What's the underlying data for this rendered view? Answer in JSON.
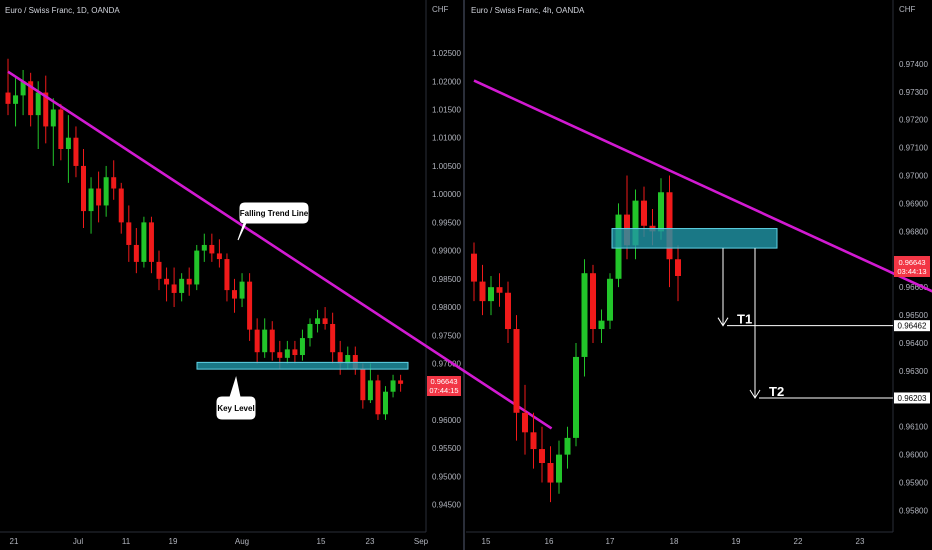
{
  "chart_data": [
    {
      "type": "candlestick",
      "title": "Euro / Swiss Franc, 1D, OANDA",
      "currency": "CHF",
      "ylim": [
        0.9405,
        1.0305
      ],
      "y_ticks": [
        "1.02500",
        "1.02000",
        "1.01500",
        "1.01000",
        "1.00500",
        "1.00000",
        "0.99500",
        "0.99000",
        "0.98500",
        "0.98000",
        "0.97500",
        "0.97000",
        "0.96500",
        "0.96000",
        "0.95500",
        "0.95000",
        "0.94500"
      ],
      "x_ticks": [
        "21",
        "Jul",
        "11",
        "19",
        "Aug",
        "15",
        "23",
        "Sep"
      ],
      "price": {
        "value": "0.96643",
        "countdown": "07:44:15"
      },
      "trendline": {
        "label": "Falling Trend Line",
        "from": [
          0,
          1.0217
        ],
        "to": [
          72,
          0.9585
        ]
      },
      "key_level": {
        "label": "Key Level",
        "low": 0.969,
        "high": 0.9702
      },
      "candles": [
        {
          "o": 1.018,
          "h": 1.024,
          "l": 1.014,
          "c": 1.016
        },
        {
          "o": 1.016,
          "h": 1.021,
          "l": 1.012,
          "c": 1.0175
        },
        {
          "o": 1.0175,
          "h": 1.022,
          "l": 1.014,
          "c": 1.02
        },
        {
          "o": 1.02,
          "h": 1.0215,
          "l": 1.012,
          "c": 1.014
        },
        {
          "o": 1.014,
          "h": 1.02,
          "l": 1.008,
          "c": 1.018
        },
        {
          "o": 1.018,
          "h": 1.021,
          "l": 1.009,
          "c": 1.012
        },
        {
          "o": 1.012,
          "h": 1.017,
          "l": 1.005,
          "c": 1.015
        },
        {
          "o": 1.015,
          "h": 1.016,
          "l": 1.006,
          "c": 1.008
        },
        {
          "o": 1.008,
          "h": 1.014,
          "l": 1.002,
          "c": 1.01
        },
        {
          "o": 1.01,
          "h": 1.012,
          "l": 1.003,
          "c": 1.005
        },
        {
          "o": 1.005,
          "h": 1.008,
          "l": 0.994,
          "c": 0.997
        },
        {
          "o": 0.997,
          "h": 1.003,
          "l": 0.993,
          "c": 1.001
        },
        {
          "o": 1.001,
          "h": 1.004,
          "l": 0.995,
          "c": 0.998
        },
        {
          "o": 0.998,
          "h": 1.005,
          "l": 0.996,
          "c": 1.003
        },
        {
          "o": 1.003,
          "h": 1.006,
          "l": 0.999,
          "c": 1.001
        },
        {
          "o": 1.001,
          "h": 1.002,
          "l": 0.993,
          "c": 0.995
        },
        {
          "o": 0.995,
          "h": 0.998,
          "l": 0.988,
          "c": 0.991
        },
        {
          "o": 0.991,
          "h": 0.994,
          "l": 0.986,
          "c": 0.988
        },
        {
          "o": 0.988,
          "h": 0.996,
          "l": 0.987,
          "c": 0.995
        },
        {
          "o": 0.995,
          "h": 0.996,
          "l": 0.986,
          "c": 0.988
        },
        {
          "o": 0.988,
          "h": 0.99,
          "l": 0.983,
          "c": 0.985
        },
        {
          "o": 0.985,
          "h": 0.987,
          "l": 0.981,
          "c": 0.984
        },
        {
          "o": 0.984,
          "h": 0.987,
          "l": 0.98,
          "c": 0.9825
        },
        {
          "o": 0.9825,
          "h": 0.986,
          "l": 0.981,
          "c": 0.985
        },
        {
          "o": 0.985,
          "h": 0.987,
          "l": 0.982,
          "c": 0.984
        },
        {
          "o": 0.984,
          "h": 0.991,
          "l": 0.983,
          "c": 0.99
        },
        {
          "o": 0.99,
          "h": 0.993,
          "l": 0.988,
          "c": 0.991
        },
        {
          "o": 0.991,
          "h": 0.993,
          "l": 0.988,
          "c": 0.9895
        },
        {
          "o": 0.9895,
          "h": 0.992,
          "l": 0.987,
          "c": 0.9885
        },
        {
          "o": 0.9885,
          "h": 0.9895,
          "l": 0.981,
          "c": 0.983
        },
        {
          "o": 0.983,
          "h": 0.985,
          "l": 0.979,
          "c": 0.9815
        },
        {
          "o": 0.9815,
          "h": 0.986,
          "l": 0.98,
          "c": 0.9845
        },
        {
          "o": 0.9845,
          "h": 0.986,
          "l": 0.974,
          "c": 0.976
        },
        {
          "o": 0.976,
          "h": 0.978,
          "l": 0.97,
          "c": 0.972
        },
        {
          "o": 0.972,
          "h": 0.978,
          "l": 0.971,
          "c": 0.976
        },
        {
          "o": 0.976,
          "h": 0.9775,
          "l": 0.9705,
          "c": 0.972
        },
        {
          "o": 0.972,
          "h": 0.974,
          "l": 0.969,
          "c": 0.971
        },
        {
          "o": 0.971,
          "h": 0.974,
          "l": 0.97,
          "c": 0.9725
        },
        {
          "o": 0.9725,
          "h": 0.974,
          "l": 0.97,
          "c": 0.9715
        },
        {
          "o": 0.9715,
          "h": 0.976,
          "l": 0.9705,
          "c": 0.9745
        },
        {
          "o": 0.9745,
          "h": 0.978,
          "l": 0.973,
          "c": 0.977
        },
        {
          "o": 0.977,
          "h": 0.9795,
          "l": 0.9755,
          "c": 0.978
        },
        {
          "o": 0.978,
          "h": 0.98,
          "l": 0.976,
          "c": 0.977
        },
        {
          "o": 0.977,
          "h": 0.979,
          "l": 0.97,
          "c": 0.972
        },
        {
          "o": 0.972,
          "h": 0.974,
          "l": 0.968,
          "c": 0.97
        },
        {
          "o": 0.97,
          "h": 0.973,
          "l": 0.969,
          "c": 0.9715
        },
        {
          "o": 0.9715,
          "h": 0.973,
          "l": 0.968,
          "c": 0.969
        },
        {
          "o": 0.969,
          "h": 0.97,
          "l": 0.962,
          "c": 0.9635
        },
        {
          "o": 0.9635,
          "h": 0.97,
          "l": 0.963,
          "c": 0.967
        },
        {
          "o": 0.967,
          "h": 0.968,
          "l": 0.96,
          "c": 0.961
        },
        {
          "o": 0.961,
          "h": 0.966,
          "l": 0.96,
          "c": 0.965
        },
        {
          "o": 0.965,
          "h": 0.968,
          "l": 0.964,
          "c": 0.967
        },
        {
          "o": 0.967,
          "h": 0.968,
          "l": 0.965,
          "c": 0.9664
        }
      ]
    },
    {
      "type": "candlestick",
      "title": "Euro / Swiss Franc, 4h, OANDA",
      "currency": "CHF",
      "ylim": [
        0.9573,
        0.9755
      ],
      "y_ticks": [
        "0.97400",
        "0.97300",
        "0.97200",
        "0.97100",
        "0.97000",
        "0.96900",
        "0.96800",
        "0.96700",
        "0.96600",
        "0.96500",
        "0.96400",
        "0.96300",
        "0.96200",
        "0.96100",
        "0.96000",
        "0.95900",
        "0.95800"
      ],
      "x_ticks": [
        "15",
        "16",
        "17",
        "18",
        "19",
        "22",
        "23"
      ],
      "price": {
        "value": "0.96643",
        "countdown": "03:44:13"
      },
      "trendline": {
        "from": [
          0,
          0.9734
        ],
        "to": [
          60,
          0.965
        ]
      },
      "key_level": {
        "low": 0.9674,
        "high": 0.9681
      },
      "targets": [
        {
          "label": "T1",
          "value": "0.96462",
          "level": 0.96462
        },
        {
          "label": "T2",
          "value": "0.96203",
          "level": 0.96203
        }
      ],
      "candles": [
        {
          "o": 0.9672,
          "h": 0.9676,
          "l": 0.9655,
          "c": 0.9662
        },
        {
          "o": 0.9662,
          "h": 0.9668,
          "l": 0.965,
          "c": 0.9655
        },
        {
          "o": 0.9655,
          "h": 0.9664,
          "l": 0.965,
          "c": 0.966
        },
        {
          "o": 0.966,
          "h": 0.9665,
          "l": 0.9653,
          "c": 0.9658
        },
        {
          "o": 0.9658,
          "h": 0.9662,
          "l": 0.964,
          "c": 0.9645
        },
        {
          "o": 0.9645,
          "h": 0.965,
          "l": 0.9605,
          "c": 0.9615
        },
        {
          "o": 0.9615,
          "h": 0.9625,
          "l": 0.96,
          "c": 0.9608
        },
        {
          "o": 0.9608,
          "h": 0.9615,
          "l": 0.9595,
          "c": 0.9602
        },
        {
          "o": 0.9602,
          "h": 0.961,
          "l": 0.959,
          "c": 0.9597
        },
        {
          "o": 0.9597,
          "h": 0.9603,
          "l": 0.9583,
          "c": 0.959
        },
        {
          "o": 0.959,
          "h": 0.9605,
          "l": 0.9586,
          "c": 0.96
        },
        {
          "o": 0.96,
          "h": 0.961,
          "l": 0.9595,
          "c": 0.9606
        },
        {
          "o": 0.9606,
          "h": 0.964,
          "l": 0.9603,
          "c": 0.9635
        },
        {
          "o": 0.9635,
          "h": 0.967,
          "l": 0.9628,
          "c": 0.9665
        },
        {
          "o": 0.9665,
          "h": 0.9668,
          "l": 0.964,
          "c": 0.9645
        },
        {
          "o": 0.9645,
          "h": 0.9652,
          "l": 0.964,
          "c": 0.9648
        },
        {
          "o": 0.9648,
          "h": 0.9665,
          "l": 0.9645,
          "c": 0.9663
        },
        {
          "o": 0.9663,
          "h": 0.969,
          "l": 0.966,
          "c": 0.9686
        },
        {
          "o": 0.9686,
          "h": 0.97,
          "l": 0.967,
          "c": 0.9675
        },
        {
          "o": 0.9675,
          "h": 0.9695,
          "l": 0.967,
          "c": 0.9691
        },
        {
          "o": 0.9691,
          "h": 0.9696,
          "l": 0.9678,
          "c": 0.9682
        },
        {
          "o": 0.9682,
          "h": 0.9688,
          "l": 0.9675,
          "c": 0.968
        },
        {
          "o": 0.968,
          "h": 0.9699,
          "l": 0.9677,
          "c": 0.9694
        },
        {
          "o": 0.9694,
          "h": 0.97,
          "l": 0.966,
          "c": 0.967
        },
        {
          "o": 0.967,
          "h": 0.9675,
          "l": 0.9655,
          "c": 0.9664
        }
      ]
    }
  ]
}
